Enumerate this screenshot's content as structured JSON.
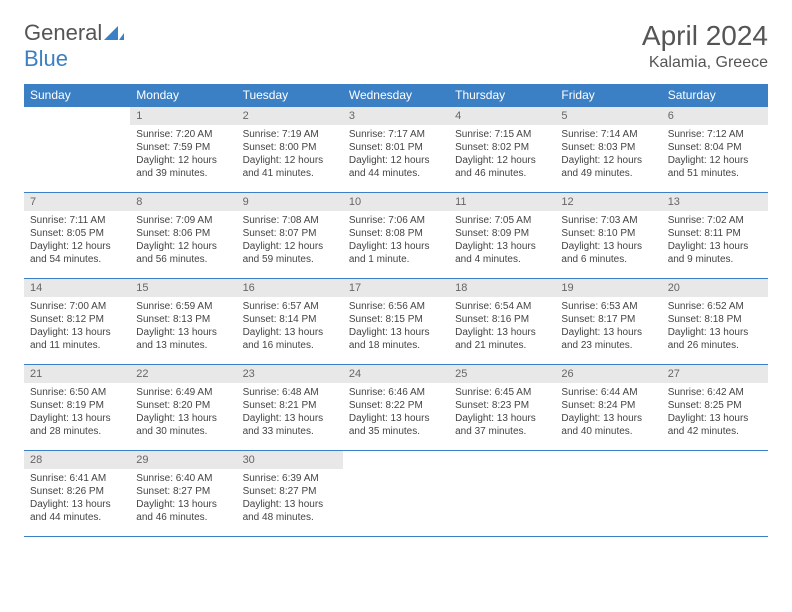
{
  "brand": {
    "part1": "General",
    "part2": "Blue"
  },
  "title": {
    "month_year": "April 2024",
    "location": "Kalamia, Greece"
  },
  "colors": {
    "accent": "#3b7fc4",
    "header_text": "#ffffff",
    "daynum_bg": "#e8e8e8",
    "body_text": "#444444"
  },
  "weekdays": [
    "Sunday",
    "Monday",
    "Tuesday",
    "Wednesday",
    "Thursday",
    "Friday",
    "Saturday"
  ],
  "weeks": [
    [
      null,
      {
        "n": "1",
        "sr": "7:20 AM",
        "ss": "7:59 PM",
        "dl": "12 hours and 39 minutes."
      },
      {
        "n": "2",
        "sr": "7:19 AM",
        "ss": "8:00 PM",
        "dl": "12 hours and 41 minutes."
      },
      {
        "n": "3",
        "sr": "7:17 AM",
        "ss": "8:01 PM",
        "dl": "12 hours and 44 minutes."
      },
      {
        "n": "4",
        "sr": "7:15 AM",
        "ss": "8:02 PM",
        "dl": "12 hours and 46 minutes."
      },
      {
        "n": "5",
        "sr": "7:14 AM",
        "ss": "8:03 PM",
        "dl": "12 hours and 49 minutes."
      },
      {
        "n": "6",
        "sr": "7:12 AM",
        "ss": "8:04 PM",
        "dl": "12 hours and 51 minutes."
      }
    ],
    [
      {
        "n": "7",
        "sr": "7:11 AM",
        "ss": "8:05 PM",
        "dl": "12 hours and 54 minutes."
      },
      {
        "n": "8",
        "sr": "7:09 AM",
        "ss": "8:06 PM",
        "dl": "12 hours and 56 minutes."
      },
      {
        "n": "9",
        "sr": "7:08 AM",
        "ss": "8:07 PM",
        "dl": "12 hours and 59 minutes."
      },
      {
        "n": "10",
        "sr": "7:06 AM",
        "ss": "8:08 PM",
        "dl": "13 hours and 1 minute."
      },
      {
        "n": "11",
        "sr": "7:05 AM",
        "ss": "8:09 PM",
        "dl": "13 hours and 4 minutes."
      },
      {
        "n": "12",
        "sr": "7:03 AM",
        "ss": "8:10 PM",
        "dl": "13 hours and 6 minutes."
      },
      {
        "n": "13",
        "sr": "7:02 AM",
        "ss": "8:11 PM",
        "dl": "13 hours and 9 minutes."
      }
    ],
    [
      {
        "n": "14",
        "sr": "7:00 AM",
        "ss": "8:12 PM",
        "dl": "13 hours and 11 minutes."
      },
      {
        "n": "15",
        "sr": "6:59 AM",
        "ss": "8:13 PM",
        "dl": "13 hours and 13 minutes."
      },
      {
        "n": "16",
        "sr": "6:57 AM",
        "ss": "8:14 PM",
        "dl": "13 hours and 16 minutes."
      },
      {
        "n": "17",
        "sr": "6:56 AM",
        "ss": "8:15 PM",
        "dl": "13 hours and 18 minutes."
      },
      {
        "n": "18",
        "sr": "6:54 AM",
        "ss": "8:16 PM",
        "dl": "13 hours and 21 minutes."
      },
      {
        "n": "19",
        "sr": "6:53 AM",
        "ss": "8:17 PM",
        "dl": "13 hours and 23 minutes."
      },
      {
        "n": "20",
        "sr": "6:52 AM",
        "ss": "8:18 PM",
        "dl": "13 hours and 26 minutes."
      }
    ],
    [
      {
        "n": "21",
        "sr": "6:50 AM",
        "ss": "8:19 PM",
        "dl": "13 hours and 28 minutes."
      },
      {
        "n": "22",
        "sr": "6:49 AM",
        "ss": "8:20 PM",
        "dl": "13 hours and 30 minutes."
      },
      {
        "n": "23",
        "sr": "6:48 AM",
        "ss": "8:21 PM",
        "dl": "13 hours and 33 minutes."
      },
      {
        "n": "24",
        "sr": "6:46 AM",
        "ss": "8:22 PM",
        "dl": "13 hours and 35 minutes."
      },
      {
        "n": "25",
        "sr": "6:45 AM",
        "ss": "8:23 PM",
        "dl": "13 hours and 37 minutes."
      },
      {
        "n": "26",
        "sr": "6:44 AM",
        "ss": "8:24 PM",
        "dl": "13 hours and 40 minutes."
      },
      {
        "n": "27",
        "sr": "6:42 AM",
        "ss": "8:25 PM",
        "dl": "13 hours and 42 minutes."
      }
    ],
    [
      {
        "n": "28",
        "sr": "6:41 AM",
        "ss": "8:26 PM",
        "dl": "13 hours and 44 minutes."
      },
      {
        "n": "29",
        "sr": "6:40 AM",
        "ss": "8:27 PM",
        "dl": "13 hours and 46 minutes."
      },
      {
        "n": "30",
        "sr": "6:39 AM",
        "ss": "8:27 PM",
        "dl": "13 hours and 48 minutes."
      },
      null,
      null,
      null,
      null
    ]
  ],
  "labels": {
    "sunrise": "Sunrise:",
    "sunset": "Sunset:",
    "daylight": "Daylight:"
  }
}
